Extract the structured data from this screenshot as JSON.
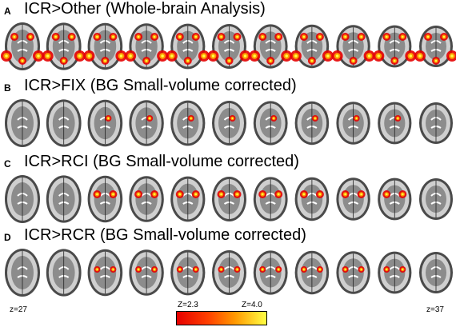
{
  "panels": [
    {
      "letter": "A",
      "title": "ICR>Other (Whole-brain Analysis)"
    },
    {
      "letter": "B",
      "title": "ICR>FIX (BG Small-volume corrected)"
    },
    {
      "letter": "C",
      "title": "ICR>RCI (BG Small-volume corrected)"
    },
    {
      "letter": "D",
      "title": "ICR>RCR (BG Small-volume corrected)"
    }
  ],
  "z_start_label": "z=27",
  "z_end_label": "z=37",
  "colorbar": {
    "min_label": "Z=2.3",
    "max_label": "Z=4.0",
    "colors": [
      "#e60000",
      "#ff4000",
      "#ff9900",
      "#ffff44"
    ]
  },
  "slices_per_row": 11
}
